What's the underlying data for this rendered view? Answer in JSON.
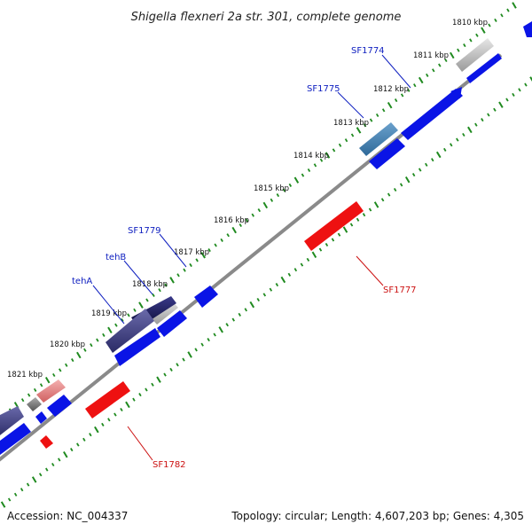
{
  "title": "Shigella flexneri 2a str. 301, complete genome",
  "footer": {
    "accession": "Accession: NC_004337",
    "topology": "Topology: circular; Length: 4,607,203 bp; Genes: 4,305"
  },
  "colors": {
    "backbone": "#8a8a8a",
    "ticks": "#1f8a1f",
    "forward_gene": "#0a14e6",
    "reverse_gene": "#ee1111",
    "label_forward": "#1020c0",
    "label_reverse": "#cc1111"
  },
  "ticks": [
    {
      "kbp": 1810,
      "label": "1810 kbp"
    },
    {
      "kbp": 1811,
      "label": "1811 kbp"
    },
    {
      "kbp": 1812,
      "label": "1812 kbp"
    },
    {
      "kbp": 1813,
      "label": "1813 kbp"
    },
    {
      "kbp": 1814,
      "label": "1814 kbp"
    },
    {
      "kbp": 1815,
      "label": "1815 kbp"
    },
    {
      "kbp": 1816,
      "label": "1816 kbp"
    },
    {
      "kbp": 1817,
      "label": "1817 kbp"
    },
    {
      "kbp": 1818,
      "label": "1818 kbp"
    },
    {
      "kbp": 1819,
      "label": "1819 kbp"
    },
    {
      "kbp": 1820,
      "label": "1820 kbp"
    },
    {
      "kbp": 1821,
      "label": "1821 kbp"
    }
  ],
  "labels": [
    {
      "name": "SF1774",
      "strand": "forward"
    },
    {
      "name": "SF1775",
      "strand": "forward"
    },
    {
      "name": "SF1779",
      "strand": "forward"
    },
    {
      "name": "tehB",
      "strand": "forward"
    },
    {
      "name": "tehA",
      "strand": "forward"
    },
    {
      "name": "SF1777",
      "strand": "reverse"
    },
    {
      "name": "SF1782",
      "strand": "reverse"
    }
  ]
}
